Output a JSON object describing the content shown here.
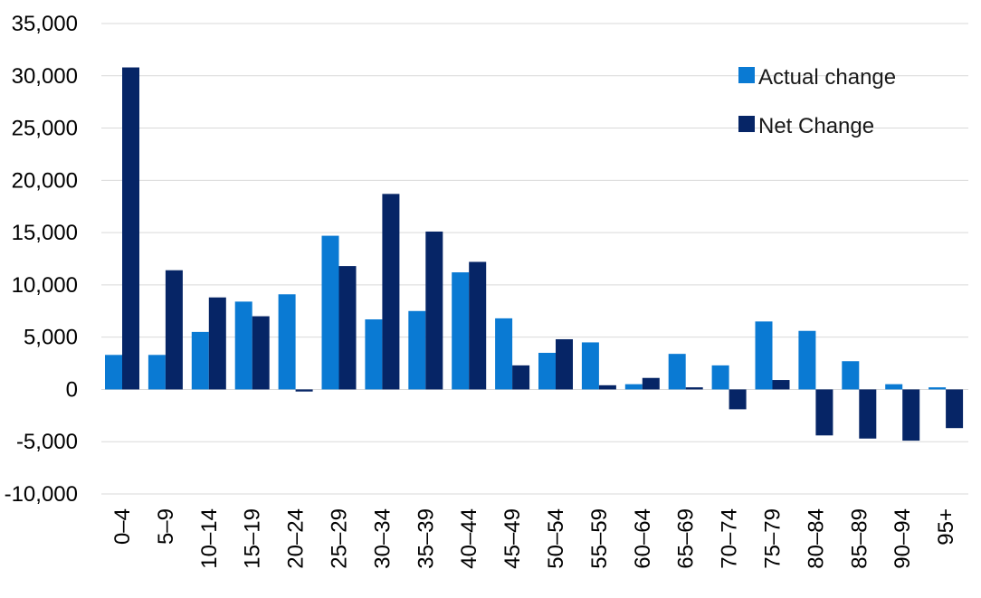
{
  "colors": {
    "actual": "#0a7ad3",
    "net": "#062566",
    "grid": "#d9d9d9",
    "text": "#000000"
  },
  "legend": {
    "actual_label": "Actual change",
    "net_label": "Net Change",
    "placement": "top-right"
  },
  "chart_data": {
    "type": "bar",
    "title": "",
    "xlabel": "",
    "ylabel": "",
    "ylim": [
      -10000,
      35000
    ],
    "yticks": [
      35000,
      30000,
      25000,
      20000,
      15000,
      10000,
      5000,
      0,
      -5000,
      -10000
    ],
    "ytick_labels": [
      "35,000",
      "30,000",
      "25,000",
      "20,000",
      "15,000",
      "10,000",
      "5,000",
      "0",
      "-5,000",
      "-10,000"
    ],
    "grid": true,
    "categories": [
      "0–4",
      "5–9",
      "10–14",
      "15–19",
      "20–24",
      "25–29",
      "30–34",
      "35–39",
      "40–44",
      "45–49",
      "50–54",
      "55–59",
      "60–64",
      "65–69",
      "70–74",
      "75–79",
      "80–84",
      "85–89",
      "90–94",
      "95+"
    ],
    "series": [
      {
        "name": "Actual change",
        "values": [
          3300,
          3300,
          5500,
          8400,
          9100,
          14700,
          6700,
          7500,
          11200,
          6800,
          3500,
          4500,
          500,
          3400,
          2300,
          6500,
          5600,
          2700,
          500,
          200
        ]
      },
      {
        "name": "Net Change",
        "values": [
          30800,
          11400,
          8800,
          7000,
          -200,
          11800,
          18700,
          15100,
          12200,
          2300,
          4800,
          400,
          1100,
          200,
          -1900,
          900,
          -4400,
          -4700,
          -4900,
          -3700
        ]
      }
    ]
  }
}
